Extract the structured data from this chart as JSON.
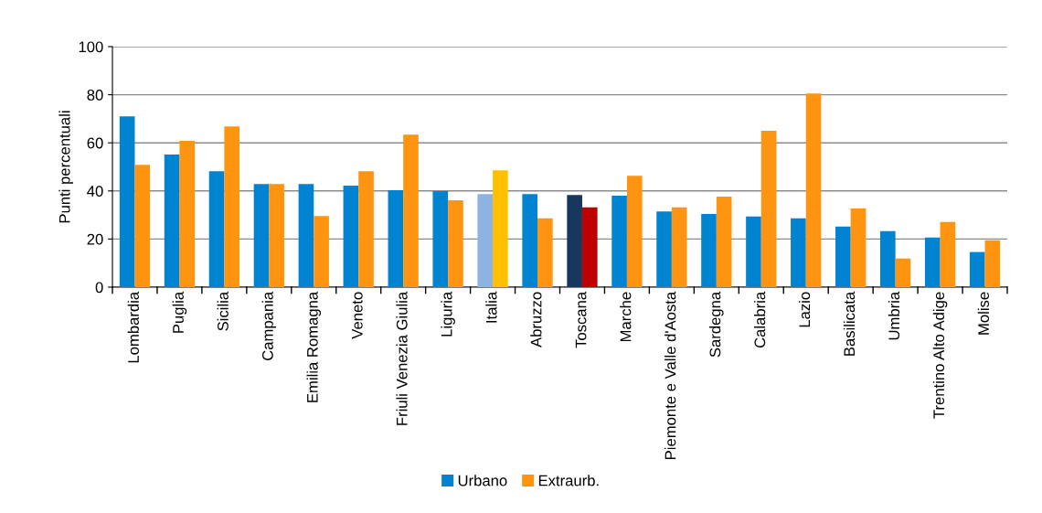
{
  "chart_data": {
    "type": "bar",
    "ylabel": "Punti percentuali",
    "categories": [
      "Lombardia",
      "Puglia",
      "Sicilia",
      "Campania",
      "Emilia Romagna",
      "Veneto",
      "Friuli Venezia Giulia",
      "Liguria",
      "Italia",
      "Abruzzo",
      "Toscana",
      "Marche",
      "Piemonte e Valle d'Aosta",
      "Sardegna",
      "Calabria",
      "Lazio",
      "Basilicata",
      "Umbria",
      "Trentino Alto Adige",
      "Molise"
    ],
    "series": [
      {
        "name": "Urbano",
        "color": "#0083d1",
        "colors": [
          "#0083d1",
          "#0083d1",
          "#0083d1",
          "#0083d1",
          "#0083d1",
          "#0083d1",
          "#0083d1",
          "#0083d1",
          "#8db3e2",
          "#0083d1",
          "#17375e",
          "#0083d1",
          "#0083d1",
          "#0083d1",
          "#0083d1",
          "#0083d1",
          "#0083d1",
          "#0083d1",
          "#0083d1",
          "#0083d1"
        ],
        "values": [
          71.0,
          55.1,
          48.2,
          42.9,
          42.9,
          42.2,
          40.3,
          39.9,
          38.7,
          38.7,
          38.3,
          38.0,
          31.5,
          30.4,
          29.4,
          28.6,
          25.2,
          23.3,
          20.6,
          14.6
        ]
      },
      {
        "name": "Extraurb.",
        "color": "#ff9410",
        "colors": [
          "#ff9410",
          "#ff9410",
          "#ff9410",
          "#ff9410",
          "#ff9410",
          "#ff9410",
          "#ff9410",
          "#ff9410",
          "#ffc000",
          "#ff9410",
          "#c00000",
          "#ff9410",
          "#ff9410",
          "#ff9410",
          "#ff9410",
          "#ff9410",
          "#ff9410",
          "#ff9410",
          "#ff9410",
          "#ff9410"
        ],
        "values": [
          50.9,
          60.8,
          66.8,
          42.9,
          29.6,
          48.2,
          63.4,
          36.1,
          48.6,
          28.6,
          33.2,
          46.3,
          33.2,
          37.6,
          65.0,
          80.5,
          32.7,
          11.9,
          27.1,
          19.5
        ]
      }
    ],
    "ylim": [
      0,
      100
    ],
    "yticks": [
      0,
      20,
      40,
      60,
      80,
      100
    ],
    "grid": "y",
    "legend": "bottom"
  }
}
